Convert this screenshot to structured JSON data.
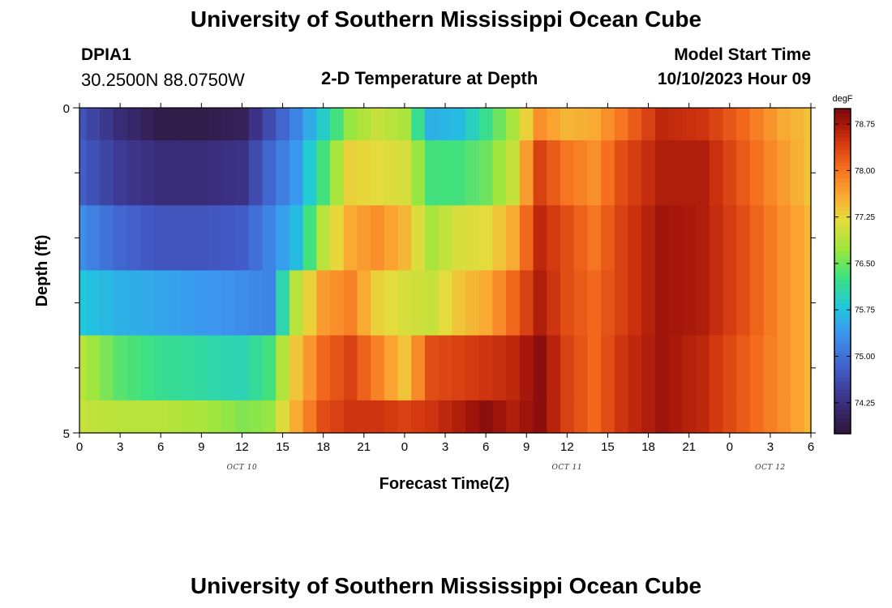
{
  "page": {
    "title": "University of Southern Mississippi Ocean Cube",
    "footer_title": "University of Southern Mississippi Ocean Cube",
    "station": "DPIA1",
    "coordinates": "30.2500N  88.0750W",
    "chart_title": "2-D Temperature at Depth",
    "model_start_label": "Model Start Time",
    "model_start_value": "10/10/2023 Hour 09"
  },
  "chart_data": {
    "type": "heatmap",
    "title": "2-D Temperature at Depth",
    "xlabel": "Forecast Time(Z)",
    "ylabel": "Depth (ft)",
    "x_range_hours": [
      0,
      54
    ],
    "y_range": [
      0,
      5
    ],
    "x_tick_labels": [
      "0",
      "3",
      "6",
      "9",
      "12",
      "15",
      "18",
      "21",
      "0",
      "3",
      "6",
      "9",
      "12",
      "15",
      "18",
      "21",
      "0",
      "3",
      "6"
    ],
    "y_tick_labels": [
      "0",
      "5"
    ],
    "date_labels": [
      {
        "label": "OCT 10",
        "hour": 12
      },
      {
        "label": "OCT 11",
        "hour": 36
      },
      {
        "label": "OCT 12",
        "hour": 51
      }
    ],
    "colorbar": {
      "unit": "degF",
      "min": 73.75,
      "max": 79.0,
      "tick_values": [
        74.25,
        75.0,
        75.75,
        76.5,
        77.25,
        78.0,
        78.75
      ],
      "tick_labels": [
        "74.25",
        "75.00",
        "75.75",
        "76.50",
        "77.25",
        "78.00",
        "78.75"
      ]
    },
    "depth_layers": [
      "0-0.5",
      "0.5-1.5",
      "1.5-2.5",
      "2.5-3.5",
      "3.5-4.5",
      "4.5-5"
    ],
    "hour_knots": [
      0,
      3,
      6,
      9,
      12,
      14,
      16,
      18,
      20,
      22,
      24,
      26,
      28,
      30,
      32,
      34,
      36,
      38,
      40,
      43,
      46,
      49,
      52,
      54
    ],
    "values": [
      [
        74.7,
        74.2,
        73.9,
        73.9,
        74.0,
        74.6,
        75.2,
        75.9,
        76.7,
        77.0,
        76.8,
        75.6,
        75.7,
        76.2,
        76.8,
        77.8,
        77.5,
        77.6,
        78.0,
        78.6,
        78.5,
        78.1,
        77.6,
        77.4
      ],
      [
        74.8,
        74.4,
        74.2,
        74.2,
        74.3,
        74.9,
        75.4,
        76.3,
        77.3,
        77.2,
        77.1,
        76.3,
        76.3,
        76.5,
        77.0,
        78.4,
        78.0,
        77.8,
        78.3,
        78.7,
        78.7,
        78.2,
        77.7,
        77.4
      ],
      [
        75.3,
        74.9,
        74.7,
        74.7,
        74.8,
        75.2,
        75.7,
        76.9,
        77.6,
        77.8,
        77.5,
        76.8,
        77.1,
        77.2,
        77.6,
        78.6,
        78.3,
        78.0,
        78.4,
        78.8,
        78.7,
        78.3,
        77.8,
        77.5
      ],
      [
        75.8,
        75.6,
        75.5,
        75.4,
        75.3,
        75.2,
        76.9,
        77.7,
        77.9,
        77.3,
        77.1,
        77.0,
        77.4,
        77.6,
        78.1,
        78.7,
        78.3,
        78.1,
        78.4,
        78.8,
        78.7,
        78.3,
        77.8,
        77.5
      ],
      [
        76.9,
        76.4,
        76.2,
        76.1,
        76.0,
        76.3,
        77.4,
        78.1,
        78.4,
        77.9,
        77.4,
        78.3,
        78.4,
        78.5,
        78.6,
        78.9,
        78.4,
        78.1,
        78.5,
        78.8,
        78.6,
        78.2,
        77.8,
        77.5
      ],
      [
        77.0,
        76.9,
        76.9,
        76.8,
        76.6,
        76.7,
        77.6,
        78.3,
        78.5,
        78.5,
        78.4,
        78.5,
        78.7,
        78.9,
        78.7,
        78.9,
        78.4,
        78.1,
        78.5,
        78.8,
        78.6,
        78.2,
        77.8,
        77.5
      ]
    ]
  }
}
